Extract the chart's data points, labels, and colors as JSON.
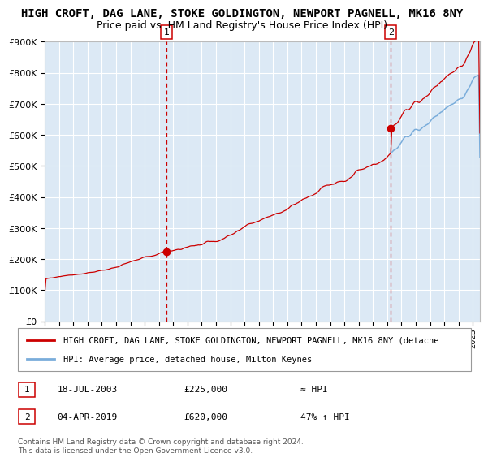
{
  "title": "HIGH CROFT, DAG LANE, STOKE GOLDINGTON, NEWPORT PAGNELL, MK16 8NY",
  "subtitle": "Price paid vs. HM Land Registry's House Price Index (HPI)",
  "legend_line1": "HIGH CROFT, DAG LANE, STOKE GOLDINGTON, NEWPORT PAGNELL, MK16 8NY (detache",
  "legend_line2": "HPI: Average price, detached house, Milton Keynes",
  "annotation1_date": "18-JUL-2003",
  "annotation1_price_str": "£225,000",
  "annotation1_hpi": "≈ HPI",
  "annotation1_year": 2003.54,
  "annotation1_val": 225000,
  "annotation2_date": "04-APR-2019",
  "annotation2_price_str": "£620,000",
  "annotation2_hpi": "47% ↑ HPI",
  "annotation2_year": 2019.25,
  "annotation2_val": 620000,
  "ytick_labels": [
    "£0",
    "£100K",
    "£200K",
    "£300K",
    "£400K",
    "£500K",
    "£600K",
    "£700K",
    "£800K",
    "£900K"
  ],
  "ytick_vals": [
    0,
    100000,
    200000,
    300000,
    400000,
    500000,
    600000,
    700000,
    800000,
    900000
  ],
  "xmin": 1995.0,
  "xmax": 2025.5,
  "ymin": 0,
  "ymax": 900000,
  "bg_color": "#dce9f5",
  "hpi_line_color": "#7aaddb",
  "price_line_color": "#cc0000",
  "vline_color": "#cc0000",
  "dot_color": "#cc0000",
  "footer_text": "Contains HM Land Registry data © Crown copyright and database right 2024.\nThis data is licensed under the Open Government Licence v3.0.",
  "title_fontsize": 10,
  "subtitle_fontsize": 9,
  "annot_box_color": "#cc0000",
  "grid_color": "#ffffff",
  "legend_border_color": "#999999"
}
